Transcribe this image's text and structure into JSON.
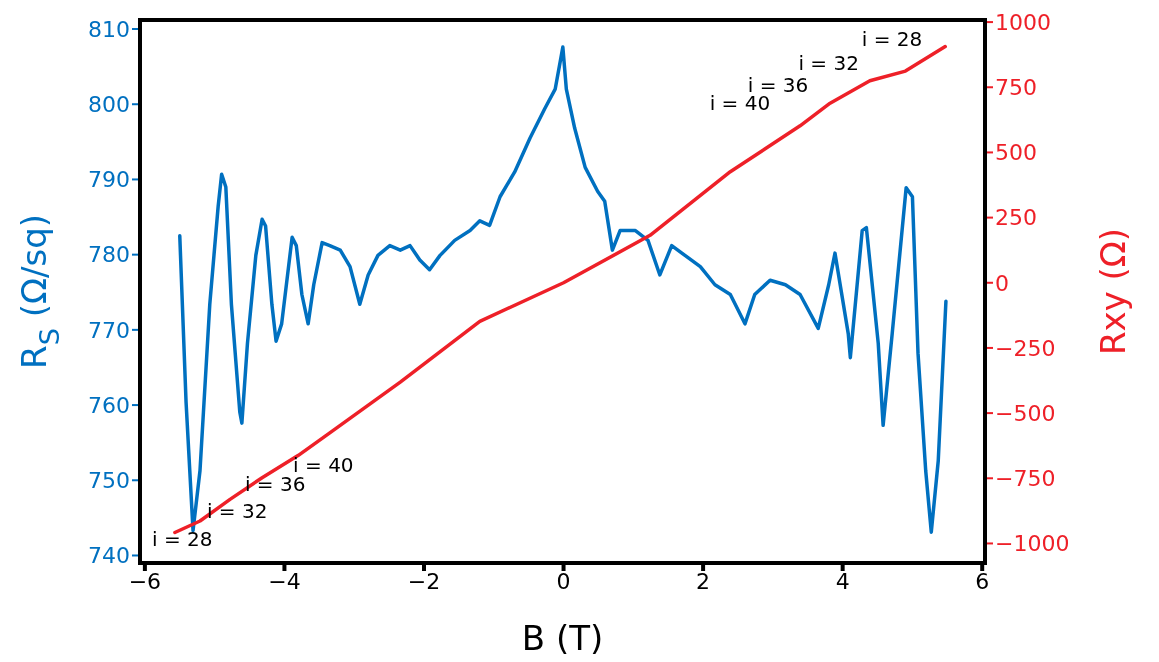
{
  "chart_data": {
    "type": "line",
    "xlabel": "B (T)",
    "ylabel": "R$_{S}$ (Ω/sq)",
    "y2label": "Rxy (Ω)",
    "xlim": [
      -6.07,
      6.04
    ],
    "xticks": [
      {
        "value": -6,
        "label": "−6"
      },
      {
        "value": -4,
        "label": "−4"
      },
      {
        "value": -2,
        "label": "−2"
      },
      0,
      2,
      4,
      6
    ],
    "ylim": [
      739,
      811.2
    ],
    "yticks": [
      740,
      750,
      760,
      770,
      780,
      790,
      800,
      810
    ],
    "y2lim": [
      -1075,
      1008
    ],
    "y2ticks": [
      {
        "value": -1000,
        "label": "−1000"
      },
      {
        "value": -750,
        "label": "−750"
      },
      {
        "value": -500,
        "label": "−500"
      },
      {
        "value": -250,
        "label": "−250"
      },
      0,
      250,
      500,
      750,
      1000
    ],
    "series": [
      {
        "color": "#0070c0",
        "x": [
          -5.5,
          -5.41,
          -5.31,
          -5.21,
          -5.07,
          -4.95,
          -4.9,
          -4.84,
          -4.76,
          -4.64,
          -4.61,
          -4.53,
          -4.41,
          -4.32,
          -4.27,
          -4.18,
          -4.12,
          -4.04,
          -3.89,
          -3.83,
          -3.75,
          -3.66,
          -3.58,
          -3.46,
          -3.35,
          -3.2,
          -3.06,
          -2.92,
          -2.8,
          -2.66,
          -2.49,
          -2.34,
          -2.2,
          -2.06,
          -1.92,
          -1.77,
          -1.56,
          -1.34,
          -1.2,
          -1.06,
          -0.91,
          -0.7,
          -0.48,
          -0.27,
          -0.12,
          -0.01,
          0.04,
          0.16,
          0.31,
          0.49,
          0.59,
          0.7,
          0.81,
          1.03,
          1.21,
          1.38,
          1.55,
          1.74,
          1.96,
          2.17,
          2.39,
          2.6,
          2.74,
          2.96,
          3.18,
          3.39,
          3.65,
          3.8,
          3.89,
          4.08,
          4.11,
          4.28,
          4.34,
          4.51,
          4.58,
          4.71,
          4.91,
          5.0,
          5.08,
          5.19,
          5.27,
          5.37,
          5.48
        ],
        "values": [
          782.5,
          760.4,
          743.3,
          751.3,
          773.4,
          786.4,
          790.7,
          789,
          773.4,
          759.1,
          757.6,
          768.2,
          779.9,
          784.7,
          783.8,
          773.4,
          768.5,
          770.8,
          782.3,
          781.2,
          774.7,
          770.8,
          776,
          781.6,
          781.2,
          780.6,
          778.4,
          773.4,
          777.3,
          779.9,
          781.2,
          780.6,
          781.2,
          779.3,
          778,
          779.9,
          781.9,
          783.2,
          784.5,
          783.9,
          787.7,
          791,
          795.5,
          799.4,
          802,
          807.6,
          802,
          796.8,
          791.6,
          788.4,
          787.1,
          780.6,
          783.2,
          783.2,
          781.9,
          777.3,
          781.2,
          779.9,
          778.4,
          776,
          774.7,
          770.8,
          774.7,
          776.6,
          776,
          774.7,
          770.2,
          776,
          780.2,
          769.5,
          766.3,
          783.2,
          783.6,
          768.2,
          757.3,
          769.5,
          788.9,
          787.7,
          766.9,
          751.3,
          743.1,
          752.6,
          773.8
        ]
      },
      {
        "axis": "y2",
        "color": "#ee2028",
        "x": [
          -5.57,
          -5.21,
          -4.78,
          -4.32,
          -3.8,
          -3.35,
          -2.34,
          -1.2,
          0,
          1.24,
          2.39,
          3.39,
          3.82,
          4.39,
          4.9,
          5.47
        ],
        "values": [
          -958,
          -914,
          -831,
          -748,
          -662,
          -576,
          -381,
          -148,
          0,
          182,
          426,
          602,
          689,
          775,
          812,
          906
        ]
      }
    ],
    "annotations": [
      "i = 28",
      "i = 32",
      "i = 36",
      "i = 40",
      "i = 40",
      "i = 36",
      "i = 32",
      "i = 28"
    ]
  }
}
